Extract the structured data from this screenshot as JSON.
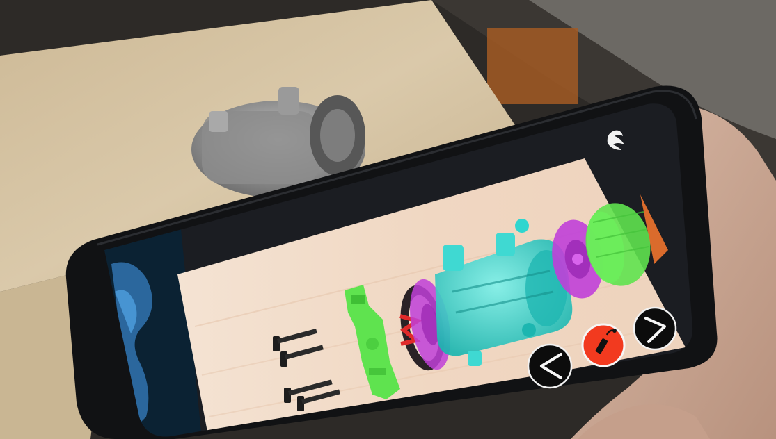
{
  "colors": {
    "table": "#d8c9ad",
    "phone_body": "#101113",
    "screen_wood": "#f1dccb",
    "part_green": "#5fe34f",
    "part_magenta": "#c040d8",
    "part_cyan": "#2fd6cf",
    "accent_red": "#f23a1f",
    "button_dark": "#0c0c0c"
  },
  "ar_app": {
    "controls": {
      "previous": {
        "icon": "chevron-left-icon"
      },
      "explode": {
        "icon": "dynamite-icon"
      },
      "next": {
        "icon": "chevron-right-icon"
      }
    },
    "logo": {
      "icon": "swan-logo-icon"
    }
  }
}
